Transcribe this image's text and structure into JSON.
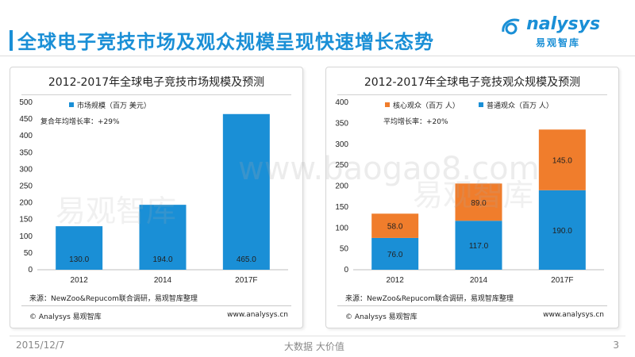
{
  "header": {
    "title": "全球电子竞技市场及观众规模呈现快速增长态势",
    "logo_text": "nalysys",
    "logo_sub": "易观智库"
  },
  "watermark": {
    "text": "www.baogao8.com",
    "cn_text": "易观智库",
    "color": "#aaaaaa"
  },
  "footer": {
    "date": "2015/12/7",
    "slogan": "大数据    大价值",
    "page_number": "3"
  },
  "colors": {
    "brand": "#1a8fd6",
    "blue_bar": "#1a8fd6",
    "orange_bar": "#f07d2c"
  },
  "chart_data": [
    {
      "type": "bar",
      "title": "2012-2017年全球电子竞技市场规模及预测",
      "categories": [
        "2012",
        "2014",
        "2017F"
      ],
      "series": [
        {
          "name": "市场规模（百万 美元）",
          "values": [
            130.0,
            194.0,
            465.0
          ],
          "color": "#1a8fd6"
        }
      ],
      "data_labels": [
        "130.0",
        "194.0",
        "465.0"
      ],
      "ylim": [
        0,
        500
      ],
      "yticks": [
        0,
        50,
        100,
        150,
        200,
        250,
        300,
        350,
        400,
        450,
        500
      ],
      "annotation": "复合年均增长率：+29%",
      "grid": false,
      "legend": "top-left",
      "source": "来源：NewZoo&Repucom联合调研，易观智库整理",
      "copyright": "© Analysys 易观智库",
      "site": "www.analysys.cn"
    },
    {
      "type": "bar",
      "stacked": true,
      "title": "2012-2017年全球电子竞技观众规模及预测",
      "categories": [
        "2012",
        "2014",
        "2017F"
      ],
      "series": [
        {
          "name": "普通观众（百万 人）",
          "values": [
            76.0,
            117.0,
            190.0
          ],
          "color": "#1a8fd6"
        },
        {
          "name": "核心观众（百万 人）",
          "values": [
            58.0,
            89.0,
            145.0
          ],
          "color": "#f07d2c"
        }
      ],
      "legend_order": [
        "核心观众（百万 人）",
        "普通观众（百万 人）"
      ],
      "ylim": [
        0,
        400
      ],
      "yticks": [
        0,
        50,
        100,
        150,
        200,
        250,
        300,
        350,
        400
      ],
      "annotation": "平均增长率：+20%",
      "grid": false,
      "legend": "top-left",
      "source": "来源：NewZoo&Repucom联合调研，易观智库整理",
      "copyright": "© Analysys 易观智库",
      "site": "www.analysys.cn"
    }
  ]
}
